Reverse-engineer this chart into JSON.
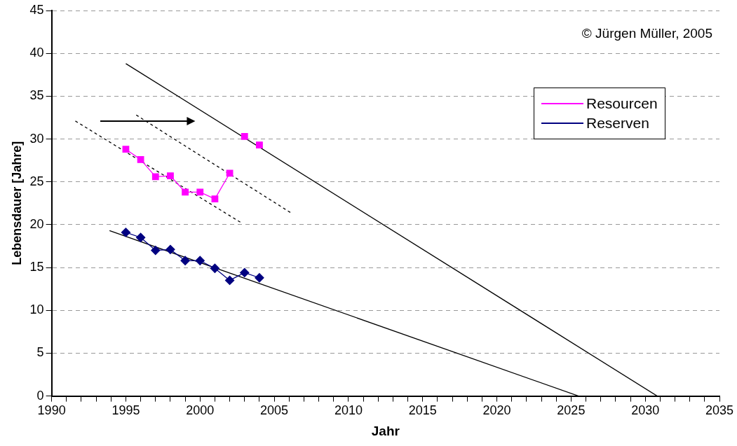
{
  "chart_data": {
    "type": "line",
    "xlabel": "Jahr",
    "ylabel": "Lebensdauer [Jahre]",
    "xlim": [
      1990,
      2035
    ],
    "xticks": [
      1990,
      {
        "value": 1991,
        "label": null
      },
      {
        "value": 1992,
        "label": null
      },
      {
        "value": 1993,
        "label": null
      },
      {
        "value": 1994,
        "label": null
      },
      1995,
      {
        "value": 1996,
        "label": null
      },
      {
        "value": 1997,
        "label": null
      },
      {
        "value": 1998,
        "label": null
      },
      {
        "value": 1999,
        "label": null
      },
      2000,
      {
        "value": 2001,
        "label": null
      },
      {
        "value": 2002,
        "label": null
      },
      {
        "value": 2003,
        "label": null
      },
      {
        "value": 2004,
        "label": null
      },
      2005,
      {
        "value": 2006,
        "label": null
      },
      {
        "value": 2007,
        "label": null
      },
      {
        "value": 2008,
        "label": null
      },
      {
        "value": 2009,
        "label": null
      },
      2010,
      {
        "value": 2011,
        "label": null
      },
      {
        "value": 2012,
        "label": null
      },
      {
        "value": 2013,
        "label": null
      },
      {
        "value": 2014,
        "label": null
      },
      2015,
      {
        "value": 2016,
        "label": null
      },
      {
        "value": 2017,
        "label": null
      },
      {
        "value": 2018,
        "label": null
      },
      {
        "value": 2019,
        "label": null
      },
      2020,
      {
        "value": 2021,
        "label": null
      },
      {
        "value": 2022,
        "label": null
      },
      {
        "value": 2023,
        "label": null
      },
      {
        "value": 2024,
        "label": null
      },
      2025,
      {
        "value": 2026,
        "label": null
      },
      {
        "value": 2027,
        "label": null
      },
      {
        "value": 2028,
        "label": null
      },
      {
        "value": 2029,
        "label": null
      },
      2030,
      {
        "value": 2031,
        "label": null
      },
      {
        "value": 2032,
        "label": null
      },
      {
        "value": 2033,
        "label": null
      },
      {
        "value": 2034,
        "label": null
      },
      2035
    ],
    "ylim": [
      0,
      45
    ],
    "yticks": [
      0,
      5,
      10,
      15,
      20,
      25,
      30,
      35,
      40,
      45
    ],
    "x": [
      1995,
      1996,
      1997,
      1998,
      1999,
      2000,
      2001,
      2002,
      2003,
      2004
    ],
    "series": [
      {
        "name": "Resourcen",
        "color": "#ff00ff",
        "marker": "square",
        "values": [
          28.8,
          27.6,
          25.6,
          25.7,
          23.8,
          23.8,
          23.0,
          26.0,
          null,
          null
        ]
      },
      {
        "color": "#ff00ff",
        "marker": "square",
        "type": "scatter",
        "values": [
          null,
          null,
          null,
          null,
          null,
          null,
          null,
          null,
          30.3,
          29.3
        ]
      },
      {
        "name": "Reserven",
        "color": "#000080",
        "marker": "diamond",
        "values": [
          19.1,
          18.5,
          17.0,
          17.1,
          15.8,
          15.8,
          14.9,
          13.5,
          14.4,
          13.8
        ]
      },
      {
        "color": "#000000",
        "marker": "none",
        "x": [
          1995,
          2030.8
        ],
        "values": [
          38.8,
          0
        ]
      },
      {
        "color": "#000000",
        "marker": "none",
        "x": [
          1993.9,
          2025.5
        ],
        "values": [
          19.3,
          0
        ]
      },
      {
        "color": "#000000",
        "marker": "none",
        "line_style": "dashed",
        "x": [
          1991.6,
          2002.8
        ],
        "values": [
          32.1,
          20.2
        ]
      },
      {
        "color": "#000000",
        "marker": "none",
        "line_style": "dashed",
        "x": [
          1995.7,
          2006.2
        ],
        "values": [
          32.8,
          21.3
        ]
      }
    ],
    "grid": "y",
    "legend": "top right",
    "annotations": [
      "© Jürgen Müller, 2005"
    ]
  }
}
